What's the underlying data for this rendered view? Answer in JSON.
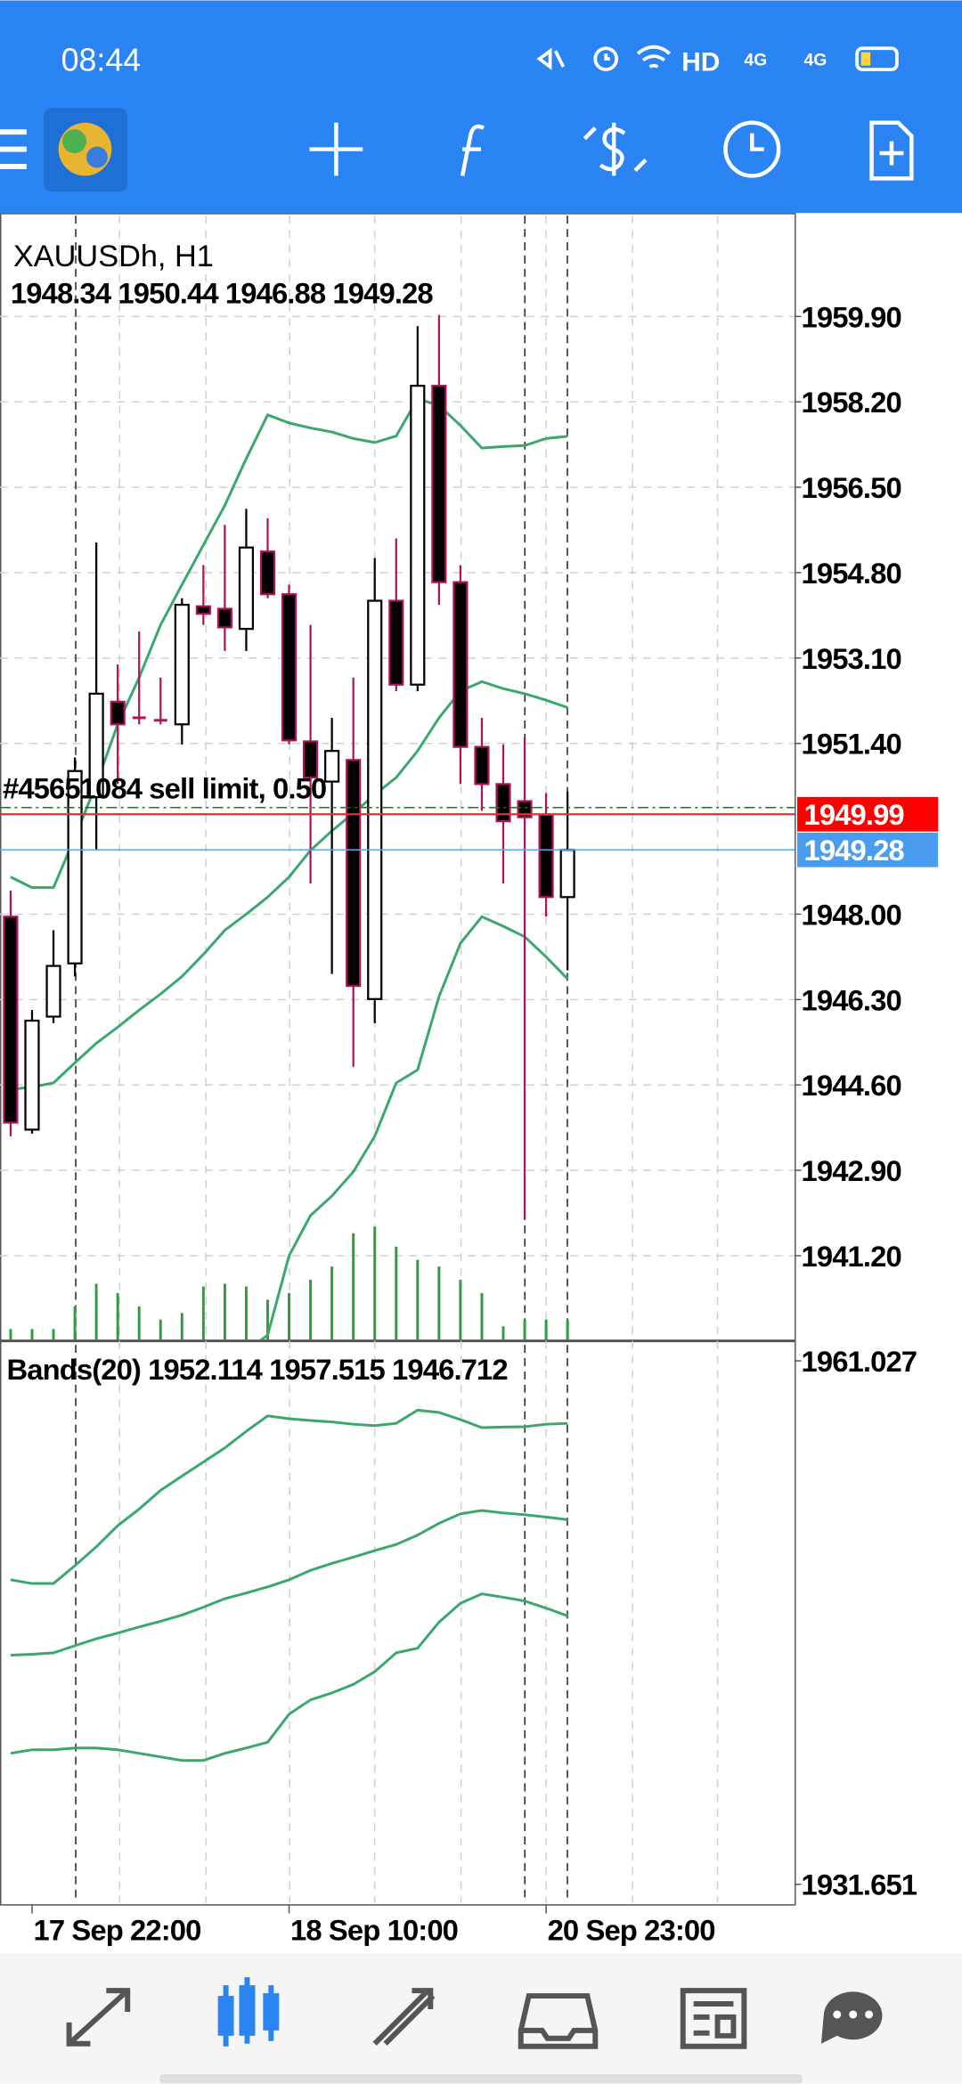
{
  "status_bar": {
    "time": "08:44",
    "network": [
      "HD",
      "4G",
      "4G"
    ]
  },
  "chart": {
    "type": "candlestick",
    "symbol_label": "XAUUSDh, H1",
    "ohlc_label": "1948.34 1950.44 1946.88 1949.28",
    "categories": [
      null,
      "17 Sep 22:00",
      null,
      null,
      null,
      null,
      null,
      null,
      null,
      null,
      null,
      null,
      null,
      "18 Sep 10:00",
      null,
      null,
      null,
      null,
      null,
      null,
      null,
      null,
      null,
      null,
      null,
      "20 Sep 23:00",
      null
    ],
    "open": [
      1947.95,
      1943.71,
      1945.96,
      1947.02,
      1950.33,
      1952.23,
      1951.91,
      1951.86,
      1951.78,
      1954.13,
      1954.08,
      1953.68,
      1955.22,
      1954.37,
      1951.44,
      1950.64,
      1951.07,
      1946.31,
      1954.24,
      1952.57,
      1958.52,
      1954.61,
      1951.33,
      1950.59,
      1950.25,
      1949.98,
      1948.34
    ],
    "high": [
      1948.47,
      1946.09,
      1947.68,
      1951.12,
      1955.4,
      1952.97,
      1953.63,
      1952.71,
      1954.29,
      1954.95,
      1955.75,
      1956.07,
      1955.88,
      1954.56,
      1953.76,
      1951.91,
      1952.71,
      1955.09,
      1955.48,
      1959.71,
      1959.93,
      1954.95,
      1951.91,
      1951.38,
      1951.52,
      1950.41,
      1950.44
    ],
    "low": [
      1943.58,
      1943.63,
      1945.83,
      1946.76,
      1949.27,
      1950.59,
      1951.78,
      1951.78,
      1951.38,
      1953.76,
      1953.24,
      1953.24,
      1954.29,
      1951.38,
      1948.61,
      1946.81,
      1944.96,
      1945.83,
      1952.44,
      1952.44,
      1954.16,
      1950.59,
      1950.06,
      1948.61,
      1941.92,
      1947.95,
      1946.88
    ],
    "close": [
      1943.85,
      1945.88,
      1946.97,
      1950.85,
      1952.39,
      1951.78,
      1951.91,
      1951.86,
      1954.16,
      1953.98,
      1953.71,
      1955.3,
      1954.37,
      1951.46,
      1950.72,
      1951.25,
      1946.57,
      1954.24,
      1952.57,
      1958.52,
      1954.61,
      1951.33,
      1950.59,
      1949.85,
      1949.93,
      1948.34,
      1949.28
    ],
    "bands": {
      "upper": [
        1948.74,
        1948.53,
        1948.53,
        1949.53,
        1950.59,
        1951.78,
        1952.71,
        1953.76,
        1954.56,
        1955.35,
        1956.14,
        1957.07,
        1957.94,
        1957.78,
        1957.68,
        1957.6,
        1957.47,
        1957.39,
        1957.52,
        1958.26,
        1958.13,
        1957.73,
        1957.28,
        1957.31,
        1957.33,
        1957.47,
        1957.515
      ],
      "middle": [
        1944.51,
        1944.56,
        1944.64,
        1945.04,
        1945.43,
        1945.75,
        1946.09,
        1946.41,
        1946.76,
        1947.2,
        1947.68,
        1948,
        1948.34,
        1948.74,
        1949.27,
        1949.66,
        1950.01,
        1950.38,
        1950.72,
        1951.25,
        1951.91,
        1952.44,
        1952.63,
        1952.49,
        1952.39,
        1952.26,
        1952.114
      ],
      "lower": [
        1939,
        1939.2,
        1939.2,
        1939.3,
        1939.3,
        1939.2,
        1939,
        1938.8,
        1938.6,
        1938.6,
        1939,
        1939.3,
        1939.62,
        1941.2,
        1942,
        1942.39,
        1942.87,
        1943.58,
        1944.64,
        1944.9,
        1946.36,
        1947.42,
        1947.95,
        1947.76,
        1947.55,
        1947.15,
        1946.712
      ],
      "color": "#3aa76d"
    },
    "volume": [
      8,
      8,
      8,
      25,
      42,
      35,
      25,
      15,
      20,
      40,
      42,
      40,
      30,
      35,
      45,
      55,
      80,
      85,
      70,
      60,
      55,
      45,
      35,
      10,
      15,
      15,
      15
    ],
    "ylim": [
      1939.53,
      1961.96
    ],
    "yticks": [
      {
        "value": 1959.9,
        "label": "1959.90"
      },
      {
        "value": 1958.2,
        "label": "1958.20"
      },
      {
        "value": 1956.5,
        "label": "1956.50"
      },
      {
        "value": 1954.8,
        "label": "1954.80"
      },
      {
        "value": 1953.1,
        "label": "1953.10"
      },
      {
        "value": 1951.4,
        "label": "1951.40"
      },
      {
        "value": 1948,
        "label": "1948.00"
      },
      {
        "value": 1946.3,
        "label": "1946.30"
      },
      {
        "value": 1944.6,
        "label": "1944.60"
      },
      {
        "value": 1942.9,
        "label": "1942.90"
      },
      {
        "value": 1941.2,
        "label": "1941.20"
      }
    ],
    "order_label": "#45651084 sell limit, 0.50",
    "order_price": 1949.99,
    "bid_price": 1949.28,
    "indicator": {
      "label": "Bands(20) 1952.114 1957.515 1946.712",
      "ylim": [
        1931.651,
        1961.027
      ],
      "yticks": [
        1961.027,
        1931.651
      ]
    }
  }
}
